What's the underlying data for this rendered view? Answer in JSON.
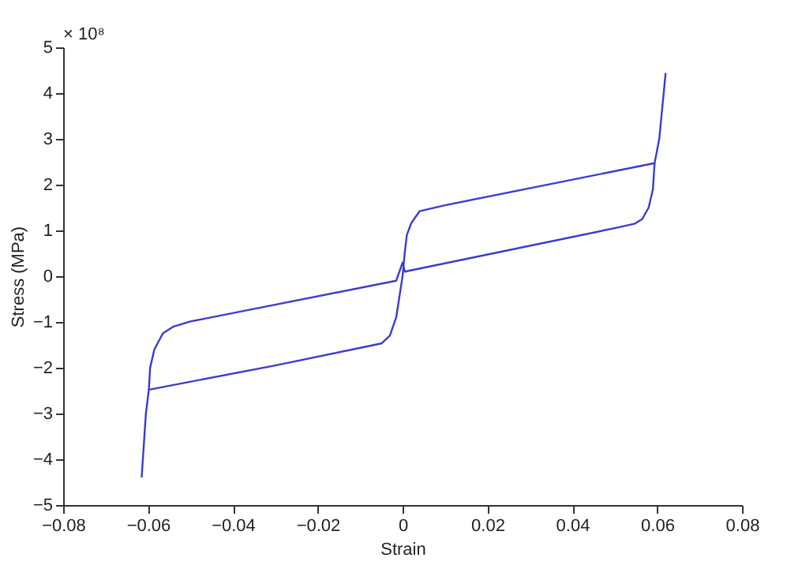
{
  "chart_data": {
    "type": "line",
    "xlabel": "Strain",
    "ylabel": "Stress (MPa)",
    "annotations": [
      "× 10⁸"
    ],
    "xlim": [
      -0.08,
      0.08
    ],
    "xticks": [
      -0.08,
      -0.06,
      -0.04,
      -0.02,
      0,
      0.02,
      0.04,
      0.06,
      0.08
    ],
    "ylim": [
      -5,
      5
    ],
    "yticks": [
      -5,
      -4,
      -3,
      -2,
      -1,
      0,
      1,
      2,
      3,
      4,
      5
    ],
    "grid": false,
    "legend": false,
    "marker": "none",
    "line_style": "solid",
    "series": [
      {
        "color": "#3b3bd0",
        "x": [
          -0.0615,
          -0.0605,
          -0.0598,
          -0.03,
          -0.005,
          -0.003,
          -0.0015,
          -0.0005,
          0,
          0.0005,
          0.001,
          0.002,
          0.004,
          0.01,
          0.0594,
          0.0605,
          0.062
        ],
        "values": [
          -4.4,
          -3.0,
          -2.48,
          -1.95,
          -1.47,
          -1.3,
          -0.9,
          -0.3,
          0,
          0.5,
          0.9,
          1.15,
          1.42,
          1.55,
          2.47,
          3.0,
          4.44
        ]
      },
      {
        "color": "#3b3bd0",
        "x": [
          0.0594,
          0.059,
          0.058,
          0.0565,
          0.0548,
          0.05,
          0.0005,
          0,
          -0.0015,
          -0.05,
          -0.054,
          -0.0565,
          -0.0585,
          -0.0595,
          -0.0598
        ],
        "values": [
          2.47,
          1.9,
          1.5,
          1.25,
          1.15,
          1.05,
          0.1,
          0.3,
          -0.1,
          -0.99,
          -1.1,
          -1.25,
          -1.6,
          -2.0,
          -2.48
        ]
      }
    ]
  }
}
